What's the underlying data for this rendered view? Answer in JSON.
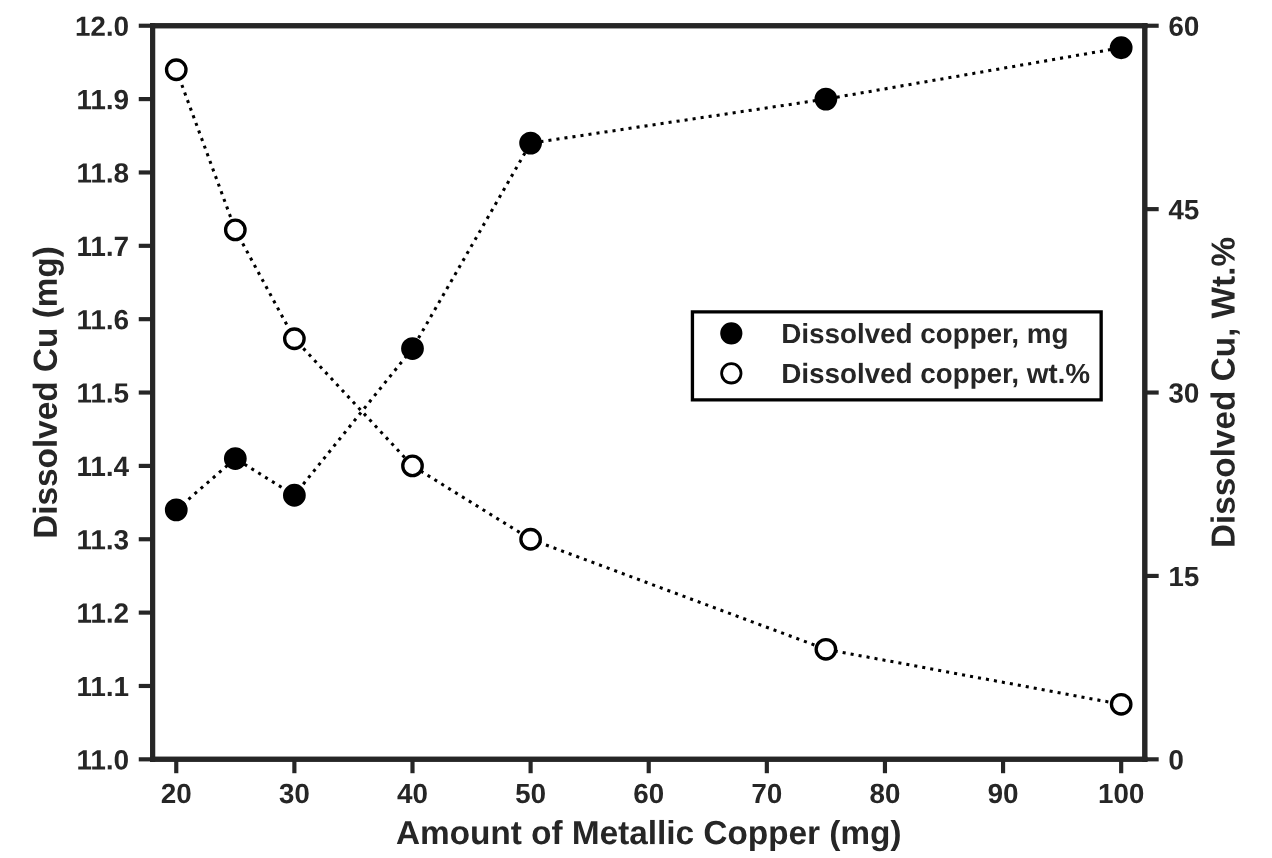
{
  "chart_data": {
    "type": "line",
    "xlabel": "Amount of Metallic Copper (mg)",
    "ylabel": "Dissolved Cu (mg)",
    "y2label": "Dissolved Cu, Wt.%",
    "x": [
      20,
      25,
      30,
      40,
      50,
      75,
      100
    ],
    "series": [
      {
        "name": "Dissolved copper, mg",
        "color": "#000000",
        "values": [
          11.34,
          11.41,
          11.36,
          11.56,
          11.84,
          11.9,
          11.97
        ]
      },
      {
        "name": "Dissolved copper, wt.%",
        "color": "#000000",
        "axis": "y2",
        "values": [
          56.4,
          43.3,
          34.4,
          24.0,
          18.0,
          9.0,
          4.5
        ]
      }
    ],
    "xlim": [
      18,
      102
    ],
    "xticks": [
      20,
      30,
      40,
      50,
      60,
      70,
      80,
      90,
      100
    ],
    "ylim": [
      11.0,
      12.0
    ],
    "yticks": [
      {
        "value": 11.0,
        "label": "11.0"
      },
      11.1,
      11.2,
      11.3,
      11.4,
      11.5,
      11.6,
      11.7,
      11.8,
      11.9,
      {
        "value": 12.0,
        "label": "12.0"
      }
    ],
    "y2lim": [
      0,
      60
    ],
    "y2ticks": [
      0,
      15,
      30,
      45,
      60
    ],
    "marker": "circle",
    "line_style": "dotted",
    "grid": false,
    "legend": "right"
  }
}
